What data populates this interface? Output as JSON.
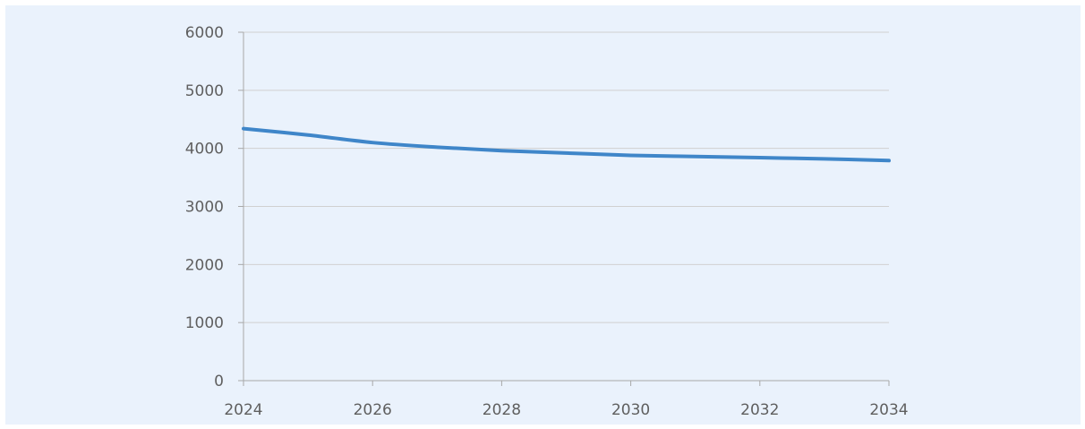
{
  "colors": {
    "background": "#eaf2fc",
    "gridline": "#d0d0d0",
    "axis": "#a8a8a8",
    "series_line": "#3f86c9",
    "tick_text": "#5f5f5f"
  },
  "chart_data": {
    "type": "line",
    "title": "",
    "xlabel": "",
    "ylabel": "",
    "xlim": [
      2024,
      2034
    ],
    "ylim": [
      0,
      6000
    ],
    "x_ticks": [
      2024,
      2026,
      2028,
      2030,
      2032,
      2034
    ],
    "x_tick_labels": [
      "2024",
      "2026",
      "2028",
      "2030",
      "2032",
      "2034"
    ],
    "y_ticks": [
      0,
      1000,
      2000,
      3000,
      4000,
      5000,
      6000
    ],
    "y_tick_labels": [
      "0",
      "1000",
      "2000",
      "3000",
      "4000",
      "5000",
      "6000"
    ],
    "grid": true,
    "legend": "none",
    "series": [
      {
        "x": [
          2024,
          2025,
          2026,
          2027,
          2028,
          2029,
          2030,
          2031,
          2032,
          2033,
          2034
        ],
        "values": [
          4340,
          4230,
          4100,
          4020,
          3960,
          3920,
          3880,
          3860,
          3840,
          3820,
          3790
        ]
      }
    ]
  }
}
